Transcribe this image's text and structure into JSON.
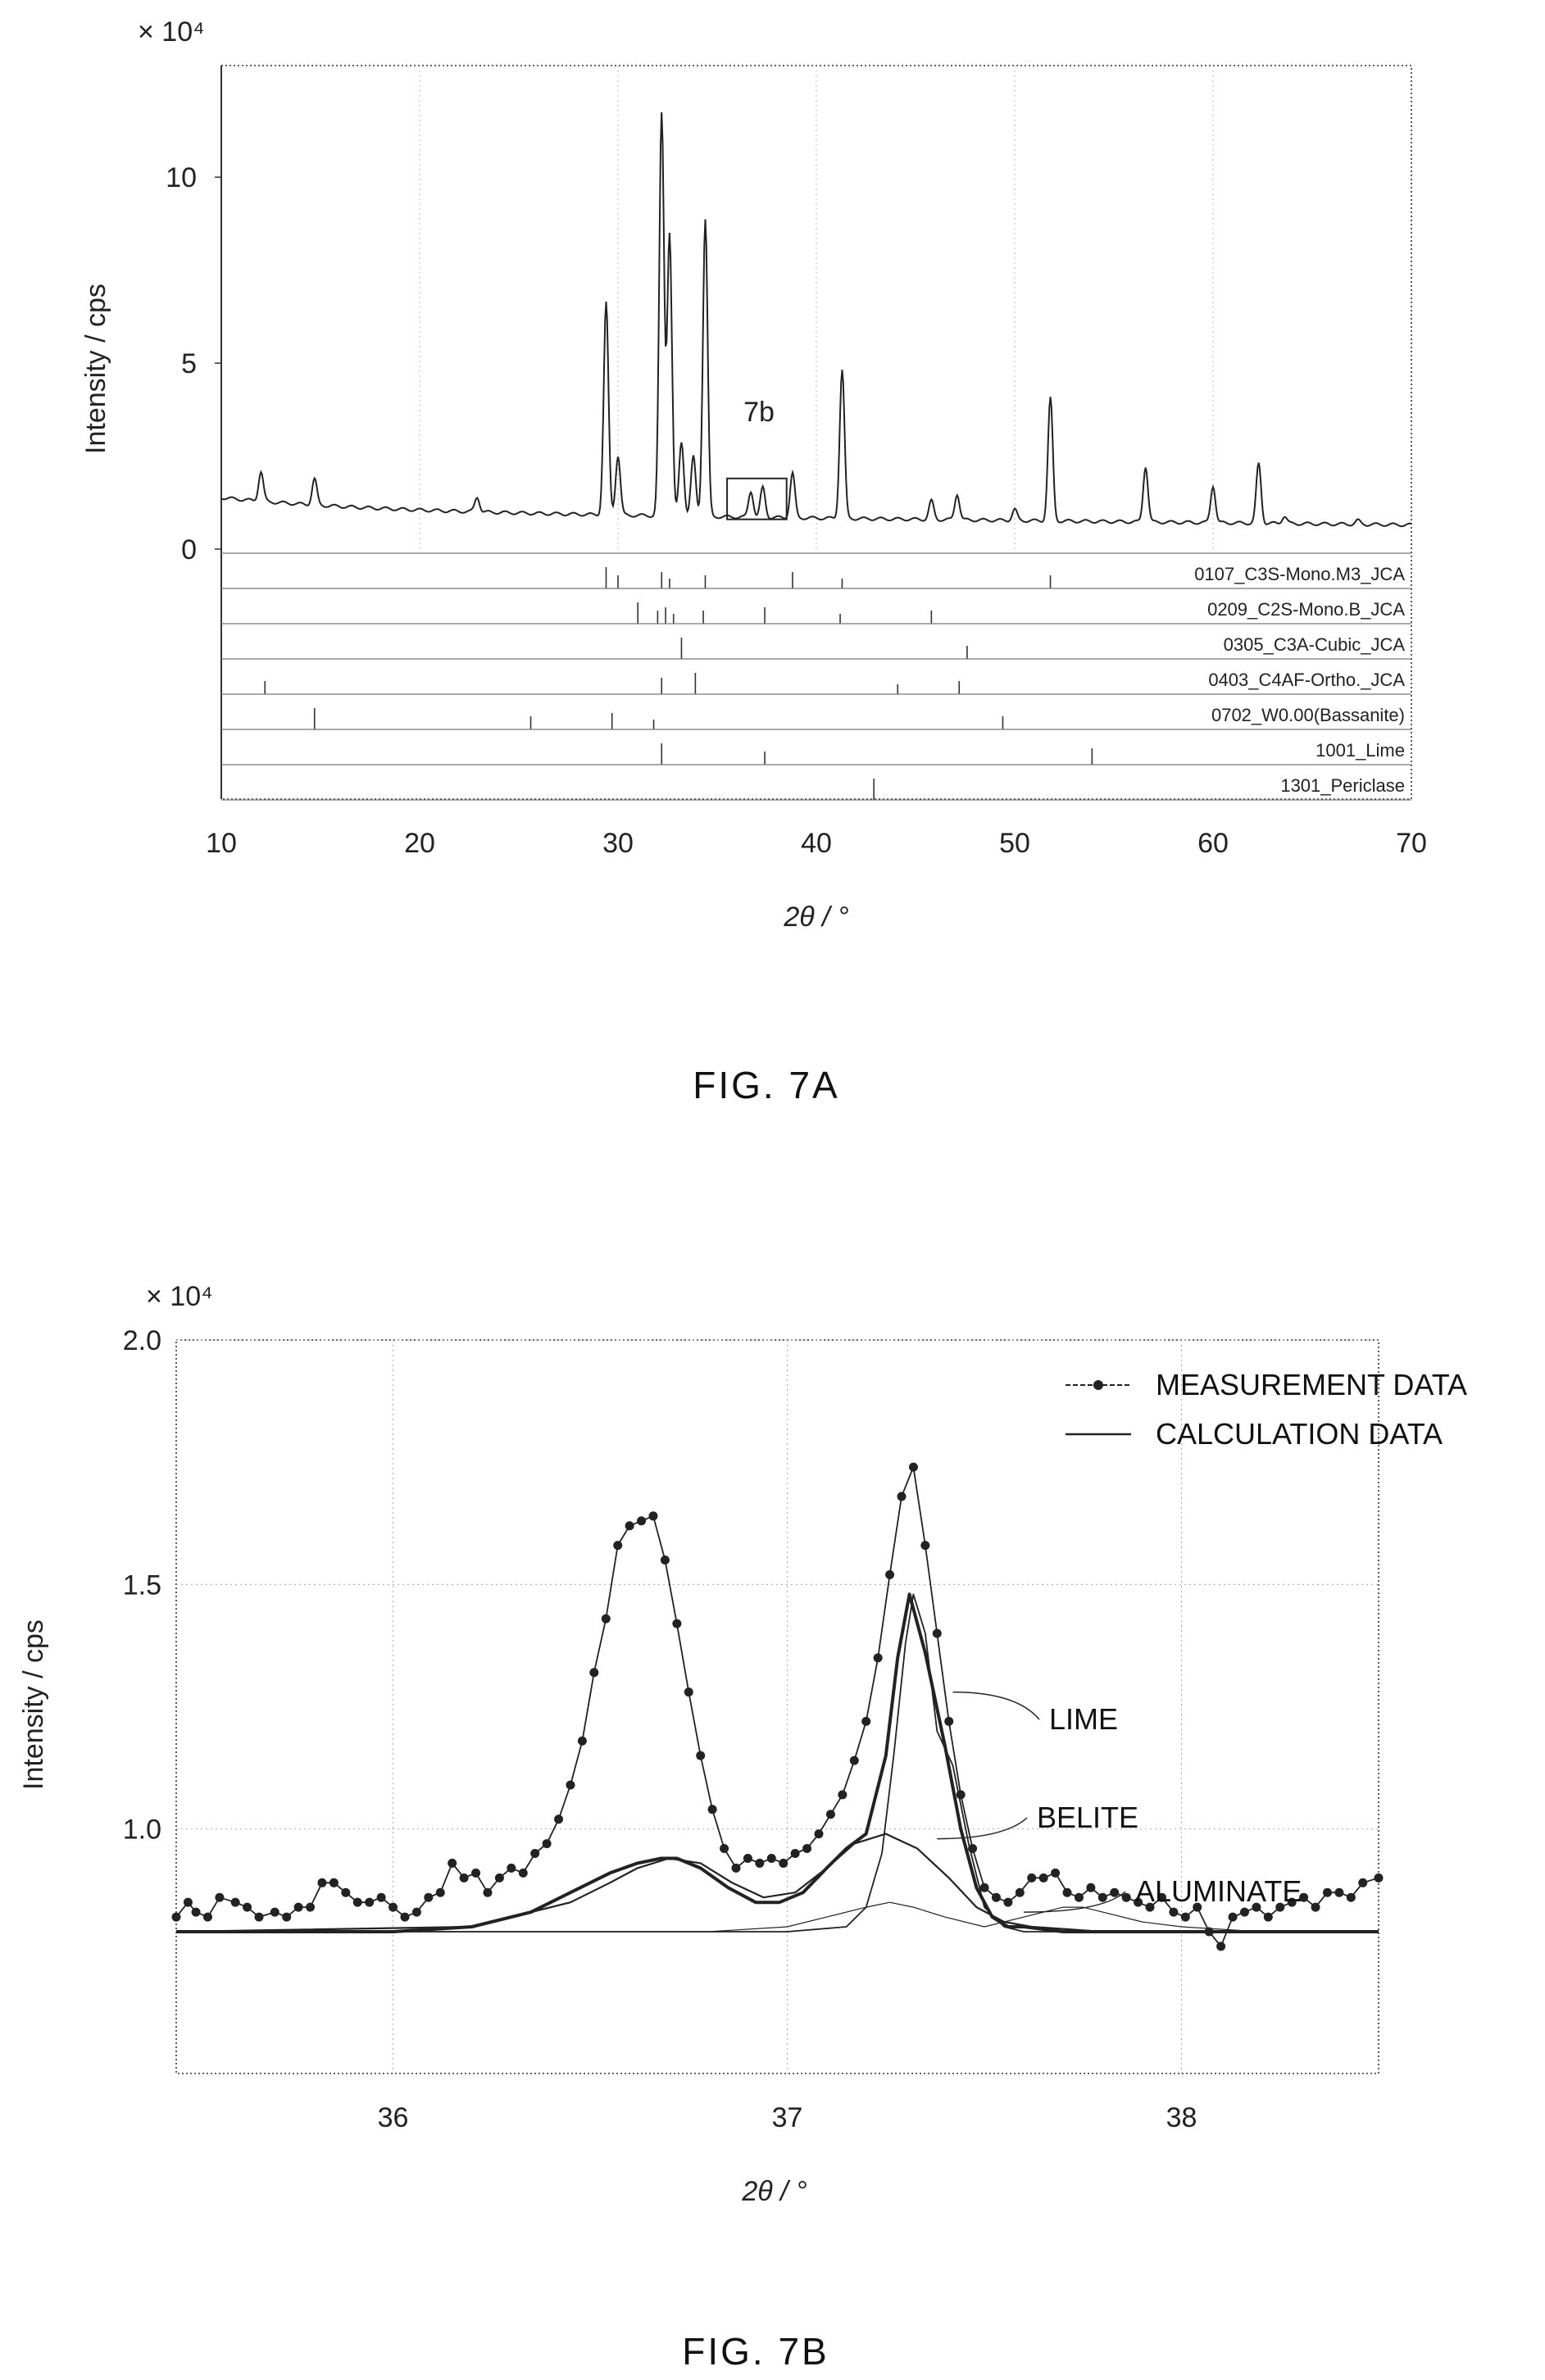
{
  "chart_data": [
    {
      "type": "line",
      "figure_label": "FIG. 7A",
      "xlabel": "2θ / °",
      "ylabel": "Intensity / cps",
      "y_multiplier": "× 10⁴",
      "xlim": [
        10,
        70
      ],
      "ylim": [
        0,
        13
      ],
      "x_ticks": [
        "10",
        "20",
        "30",
        "40",
        "50",
        "60",
        "70"
      ],
      "y_ticks": [
        "0",
        "5",
        "10"
      ],
      "x_tick_values": [
        10,
        20,
        30,
        40,
        50,
        60,
        70
      ],
      "y_tick_values": [
        0,
        5,
        10
      ],
      "baseline": 1.0,
      "peaks": [
        {
          "x": 12.0,
          "y": 1.8
        },
        {
          "x": 14.7,
          "y": 1.7
        },
        {
          "x": 22.9,
          "y": 1.4
        },
        {
          "x": 29.4,
          "y": 6.7
        },
        {
          "x": 30.0,
          "y": 2.6
        },
        {
          "x": 32.2,
          "y": 11.8
        },
        {
          "x": 32.6,
          "y": 8.6
        },
        {
          "x": 33.2,
          "y": 3.0
        },
        {
          "x": 33.8,
          "y": 2.6
        },
        {
          "x": 34.4,
          "y": 9.0
        },
        {
          "x": 36.7,
          "y": 1.7
        },
        {
          "x": 37.3,
          "y": 1.8
        },
        {
          "x": 38.8,
          "y": 2.2
        },
        {
          "x": 41.3,
          "y": 5.0
        },
        {
          "x": 45.8,
          "y": 1.5
        },
        {
          "x": 47.1,
          "y": 1.7
        },
        {
          "x": 50.0,
          "y": 1.3
        },
        {
          "x": 51.8,
          "y": 4.3
        },
        {
          "x": 56.6,
          "y": 2.5
        },
        {
          "x": 60.0,
          "y": 2.0
        },
        {
          "x": 62.3,
          "y": 2.6
        },
        {
          "x": 63.6,
          "y": 1.2
        },
        {
          "x": 67.3,
          "y": 1.1
        }
      ],
      "inset_box": {
        "label": "7b",
        "x_range": [
          35.5,
          38.5
        ],
        "y_range": [
          0.8,
          1.9
        ]
      },
      "reference_phases": [
        {
          "name": "0107_C3S-Mono.M3_JCA",
          "positions": [
            29.4,
            30.0,
            32.2,
            32.6,
            34.4,
            38.8,
            41.3,
            51.8
          ]
        },
        {
          "name": "0209_C2S-Mono.B_JCA",
          "positions": [
            31.0,
            32.0,
            32.4,
            32.8,
            34.3,
            37.4,
            41.2,
            45.8
          ]
        },
        {
          "name": "0305_C3A-Cubic_JCA",
          "positions": [
            33.2,
            47.6
          ]
        },
        {
          "name": "0403_C4AF-Ortho._JCA",
          "positions": [
            33.9,
            12.2,
            32.2,
            44.1,
            47.2
          ]
        },
        {
          "name": "0702_W0.00(Bassanite)",
          "positions": [
            14.7,
            25.6,
            29.7,
            31.8,
            49.4
          ]
        },
        {
          "name": "1001_Lime",
          "positions": [
            32.2,
            37.4,
            53.9
          ]
        },
        {
          "name": "1301_Periclase",
          "positions": [
            42.9
          ]
        }
      ]
    },
    {
      "type": "line",
      "figure_label": "FIG. 7B",
      "xlabel": "2θ / °",
      "ylabel": "Intensity / cps",
      "y_multiplier": "× 10⁴",
      "xlim": [
        35.45,
        38.5
      ],
      "ylim": [
        0.5,
        2.0
      ],
      "x_ticks": [
        "36",
        "37",
        "38"
      ],
      "y_ticks": [
        "1.0",
        "1.5",
        "2.0"
      ],
      "x_tick_values": [
        36,
        37,
        38
      ],
      "y_tick_values": [
        1.0,
        1.5,
        2.0
      ],
      "legend": {
        "position": "top-right",
        "items": [
          "MEASUREMENT DATA",
          "CALCULATION DATA"
        ]
      },
      "annotations": [
        {
          "text": "LIME",
          "target_x": 37.42,
          "target_y": 1.28
        },
        {
          "text": "BELITE",
          "target_x": 37.38,
          "target_y": 0.98
        },
        {
          "text": "ALUMINATE",
          "target_x": 37.6,
          "target_y": 0.83
        }
      ],
      "series": [
        {
          "name": "MEASUREMENT DATA",
          "x": [
            35.45,
            35.48,
            35.5,
            35.53,
            35.56,
            35.6,
            35.63,
            35.66,
            35.7,
            35.73,
            35.76,
            35.79,
            35.82,
            35.85,
            35.88,
            35.91,
            35.94,
            35.97,
            36.0,
            36.03,
            36.06,
            36.09,
            36.12,
            36.15,
            36.18,
            36.21,
            36.24,
            36.27,
            36.3,
            36.33,
            36.36,
            36.39,
            36.42,
            36.45,
            36.48,
            36.51,
            36.54,
            36.57,
            36.6,
            36.63,
            36.66,
            36.69,
            36.72,
            36.75,
            36.78,
            36.81,
            36.84,
            36.87,
            36.9,
            36.93,
            36.96,
            36.99,
            37.02,
            37.05,
            37.08,
            37.11,
            37.14,
            37.17,
            37.2,
            37.23,
            37.26,
            37.29,
            37.32,
            37.35,
            37.38,
            37.41,
            37.44,
            37.47,
            37.5,
            37.53,
            37.56,
            37.59,
            37.62,
            37.65,
            37.68,
            37.71,
            37.74,
            37.77,
            37.8,
            37.83,
            37.86,
            37.89,
            37.92,
            37.95,
            37.98,
            38.01,
            38.04,
            38.07,
            38.1,
            38.13,
            38.16,
            38.19,
            38.22,
            38.25,
            38.28,
            38.31,
            38.34,
            38.37,
            38.4,
            38.43,
            38.46,
            38.5
          ],
          "y": [
            0.82,
            0.85,
            0.83,
            0.82,
            0.86,
            0.85,
            0.84,
            0.82,
            0.83,
            0.82,
            0.84,
            0.84,
            0.89,
            0.89,
            0.87,
            0.85,
            0.85,
            0.86,
            0.84,
            0.82,
            0.83,
            0.86,
            0.87,
            0.93,
            0.9,
            0.91,
            0.87,
            0.9,
            0.92,
            0.91,
            0.95,
            0.97,
            1.02,
            1.09,
            1.18,
            1.32,
            1.43,
            1.58,
            1.62,
            1.63,
            1.64,
            1.55,
            1.42,
            1.28,
            1.15,
            1.04,
            0.96,
            0.92,
            0.94,
            0.93,
            0.94,
            0.93,
            0.95,
            0.96,
            0.99,
            1.03,
            1.07,
            1.14,
            1.22,
            1.35,
            1.52,
            1.68,
            1.74,
            1.58,
            1.4,
            1.22,
            1.07,
            0.96,
            0.88,
            0.86,
            0.85,
            0.87,
            0.9,
            0.9,
            0.91,
            0.87,
            0.86,
            0.88,
            0.86,
            0.87,
            0.86,
            0.85,
            0.84,
            0.86,
            0.83,
            0.82,
            0.84,
            0.79,
            0.76,
            0.82,
            0.83,
            0.84,
            0.82,
            0.84,
            0.85,
            0.86,
            0.84,
            0.87,
            0.87,
            0.86,
            0.89,
            0.9
          ]
        },
        {
          "name": "CALCULATION DATA",
          "x": [
            35.45,
            35.6,
            35.8,
            36.0,
            36.2,
            36.35,
            36.45,
            36.55,
            36.62,
            36.68,
            36.72,
            36.78,
            36.85,
            36.92,
            36.98,
            37.04,
            37.1,
            37.15,
            37.2,
            37.25,
            37.28,
            37.31,
            37.35,
            37.4,
            37.44,
            37.48,
            37.52,
            37.56,
            37.6,
            37.7,
            37.8,
            38.0,
            38.2,
            38.5
          ],
          "y": [
            0.79,
            0.79,
            0.79,
            0.79,
            0.8,
            0.83,
            0.87,
            0.91,
            0.93,
            0.94,
            0.94,
            0.92,
            0.88,
            0.85,
            0.85,
            0.87,
            0.92,
            0.96,
            0.99,
            1.15,
            1.35,
            1.48,
            1.36,
            1.17,
            1.0,
            0.88,
            0.82,
            0.8,
            0.8,
            0.79,
            0.79,
            0.79,
            0.79,
            0.79
          ]
        },
        {
          "name": "LIME",
          "x": [
            35.45,
            36.5,
            37.0,
            37.15,
            37.2,
            37.24,
            37.27,
            37.3,
            37.32,
            37.35,
            37.38,
            37.42,
            37.46,
            37.5,
            37.55,
            37.6,
            37.8,
            38.5
          ],
          "y": [
            0.79,
            0.79,
            0.79,
            0.8,
            0.84,
            0.95,
            1.15,
            1.38,
            1.48,
            1.4,
            1.2,
            1.13,
            0.97,
            0.84,
            0.8,
            0.79,
            0.79,
            0.79
          ]
        },
        {
          "name": "BELITE",
          "x": [
            35.45,
            36.2,
            36.45,
            36.55,
            36.62,
            36.7,
            36.78,
            36.86,
            36.94,
            37.02,
            37.1,
            37.17,
            37.25,
            37.33,
            37.41,
            37.48,
            37.55,
            37.62,
            37.8,
            38.5
          ],
          "y": [
            0.79,
            0.8,
            0.85,
            0.89,
            0.92,
            0.94,
            0.93,
            0.89,
            0.86,
            0.87,
            0.92,
            0.97,
            0.99,
            0.96,
            0.9,
            0.84,
            0.81,
            0.8,
            0.79,
            0.79
          ]
        },
        {
          "name": "ALUMINATE",
          "x": [
            35.45,
            36.8,
            37.0,
            37.1,
            37.2,
            37.26,
            37.32,
            37.4,
            37.5,
            37.6,
            37.7,
            37.75,
            37.8,
            37.9,
            38.0,
            38.2,
            38.5
          ],
          "y": [
            0.79,
            0.79,
            0.8,
            0.82,
            0.84,
            0.85,
            0.84,
            0.82,
            0.8,
            0.82,
            0.84,
            0.84,
            0.83,
            0.81,
            0.8,
            0.79,
            0.79
          ]
        }
      ]
    }
  ]
}
